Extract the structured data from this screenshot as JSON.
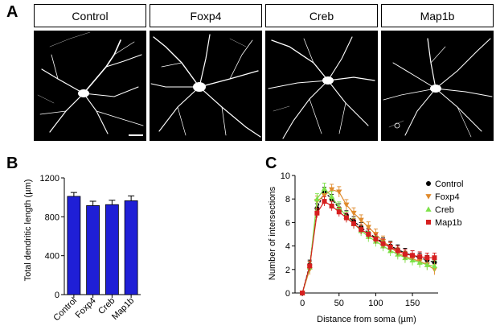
{
  "panels": {
    "a": {
      "letter": "A",
      "conditions": [
        "Control",
        "Foxp4",
        "Creb",
        "Map1b"
      ]
    },
    "b": {
      "letter": "B"
    },
    "c": {
      "letter": "C"
    }
  },
  "colors": {
    "bar": "#1f1fd6",
    "control": "#000000",
    "foxp4": "#e08a2c",
    "creb": "#7ee24a",
    "map1b": "#d61f1f"
  },
  "chart_data": [
    {
      "type": "bar",
      "categories": [
        "Control",
        "Foxp4",
        "Creb",
        "Map1b"
      ],
      "values": [
        1010,
        915,
        925,
        965
      ],
      "errors": [
        40,
        45,
        45,
        50
      ],
      "ylabel": "Total dendritic length (µm)",
      "ylim": [
        0,
        1200
      ],
      "yticks": [
        0,
        400,
        800,
        1200
      ],
      "grid": false
    },
    {
      "type": "line",
      "xlabel": "Distance from soma (µm)",
      "ylabel": "Number of intersections",
      "xlim": [
        -10,
        185
      ],
      "ylim": [
        0,
        10
      ],
      "xticks": [
        0,
        50,
        100,
        150
      ],
      "yticks": [
        0,
        2,
        4,
        6,
        8,
        10
      ],
      "legend": "right",
      "grid": false,
      "x": [
        0,
        10,
        20,
        30,
        40,
        50,
        60,
        70,
        80,
        90,
        100,
        110,
        120,
        130,
        140,
        150,
        160,
        170,
        180
      ],
      "series": [
        {
          "name": "Control",
          "values": [
            0,
            2.4,
            7.2,
            8.6,
            8.0,
            7.2,
            6.6,
            6.1,
            5.6,
            5.1,
            4.7,
            4.3,
            4.0,
            3.7,
            3.4,
            3.2,
            3.0,
            2.8,
            2.6
          ],
          "error": 0.4
        },
        {
          "name": "Foxp4",
          "values": [
            0,
            2.0,
            7.8,
            8.3,
            8.8,
            8.6,
            7.5,
            6.8,
            6.2,
            5.6,
            5.0,
            4.4,
            3.9,
            3.4,
            3.1,
            2.9,
            2.7,
            2.4,
            2.0
          ],
          "error": 0.45
        },
        {
          "name": "Creb",
          "values": [
            0,
            2.2,
            8.0,
            8.9,
            8.2,
            7.3,
            6.5,
            5.9,
            5.3,
            4.8,
            4.4,
            4.0,
            3.6,
            3.3,
            3.0,
            2.8,
            2.6,
            2.4,
            2.3
          ],
          "error": 0.45
        },
        {
          "name": "Map1b",
          "values": [
            0,
            2.3,
            6.8,
            7.8,
            7.4,
            6.9,
            6.4,
            5.9,
            5.4,
            5.0,
            4.6,
            4.2,
            3.9,
            3.6,
            3.3,
            3.2,
            3.1,
            3.0,
            3.0
          ],
          "error": 0.4
        }
      ]
    }
  ]
}
